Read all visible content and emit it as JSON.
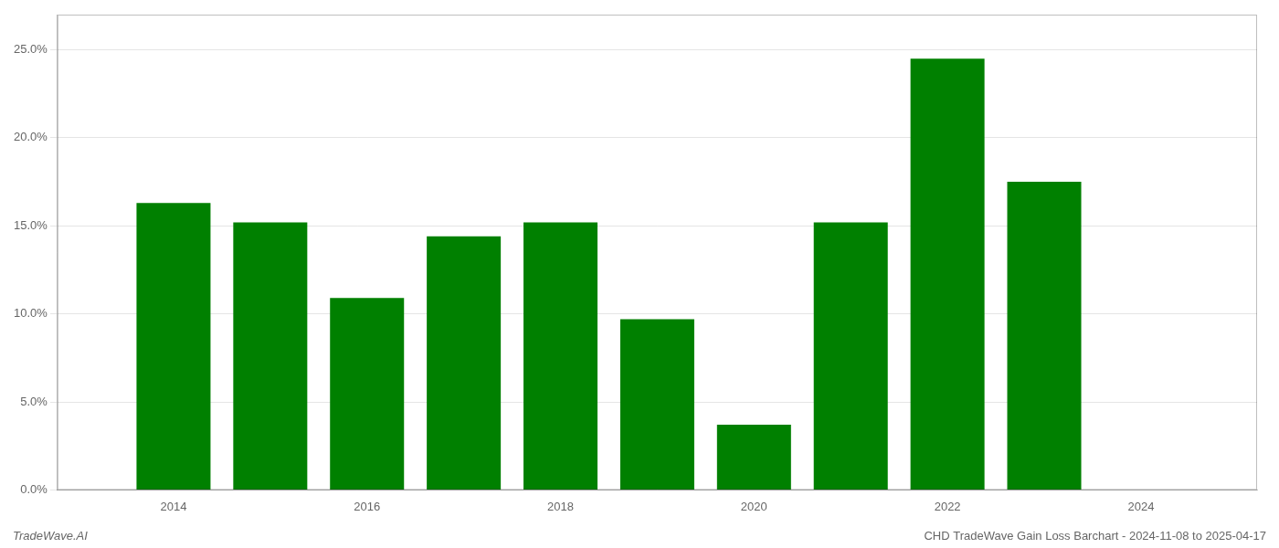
{
  "chart_data": {
    "type": "bar",
    "x": [
      2014,
      2015,
      2016,
      2017,
      2018,
      2019,
      2020,
      2021,
      2022,
      2023
    ],
    "values": [
      0.163,
      0.152,
      0.109,
      0.144,
      0.152,
      0.097,
      0.037,
      0.152,
      0.245,
      0.175
    ],
    "color": "#008000",
    "xlim": [
      2012.8,
      2025.2
    ],
    "xticks": [
      2014,
      2016,
      2018,
      2020,
      2022,
      2024
    ],
    "ylim": [
      0,
      0.27
    ],
    "yticks": [
      {
        "value": 0,
        "label": "0.0%"
      },
      {
        "value": 0.05,
        "label": "5.0%"
      },
      {
        "value": 0.1,
        "label": "10.0%"
      },
      {
        "value": 0.15,
        "label": "15.0%"
      },
      {
        "value": 0.2,
        "label": "20.0%"
      },
      {
        "value": 0.25,
        "label": "25.0%"
      }
    ],
    "grid": "y",
    "annotations": [
      "TradeWave.AI",
      "CHD TradeWave Gain Loss Barchart - 2024-11-08 to 2025-04-17"
    ]
  }
}
